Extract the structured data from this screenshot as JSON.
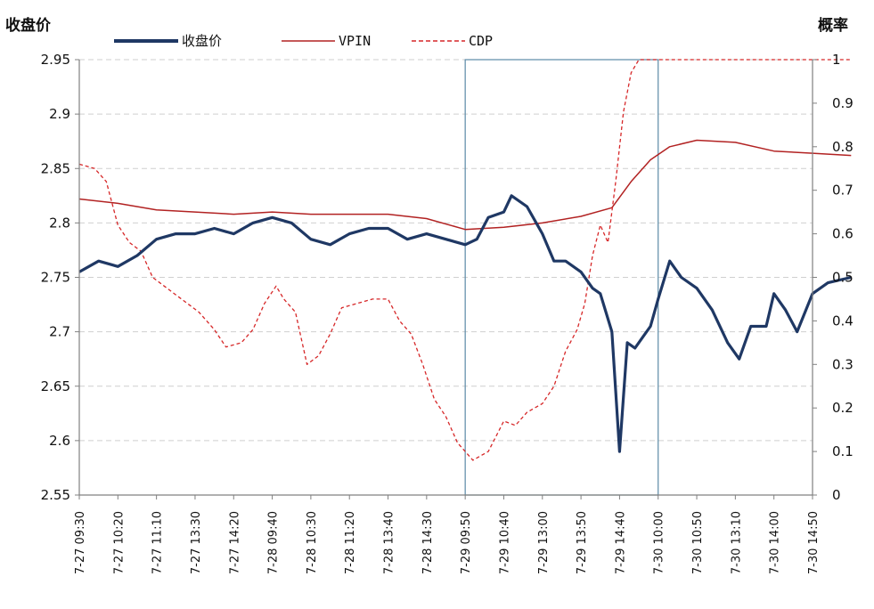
{
  "chart_data": {
    "type": "line",
    "ylabel_left": "收盘价",
    "ylabel_right": "概率",
    "ylim_left": [
      2.55,
      2.95
    ],
    "ylim_right": [
      0,
      1
    ],
    "yticks_left": [
      "2.55",
      "2.6",
      "2.65",
      "2.7",
      "2.75",
      "2.8",
      "2.85",
      "2.9",
      "2.95"
    ],
    "yticks_right": [
      "0",
      "0.1",
      "0.2",
      "0.3",
      "0.4",
      "0.5",
      "0.6",
      "0.7",
      "0.8",
      "0.9",
      "1"
    ],
    "x_tick_labels": [
      "7-27 09:30",
      "7-27 10:20",
      "7-27 11:10",
      "7-27 13:30",
      "7-27 14:20",
      "7-28 09:40",
      "7-28 10:30",
      "7-28 11:20",
      "7-28 13:40",
      "7-28 14:30",
      "7-29 09:50",
      "7-29 10:40",
      "7-29 13:00",
      "7-29 13:50",
      "7-29 14:40",
      "7-30 10:00",
      "7-30 10:50",
      "7-30 13:10",
      "7-30 14:00",
      "7-30 14:50"
    ],
    "grid": "horizontal dashed",
    "legend_position": "top",
    "highlight_region": {
      "from": "7-29 09:50",
      "to": "7-30 10:00"
    },
    "series": [
      {
        "name": "收盘价",
        "axis": "left",
        "color": "#1f3864",
        "style": "solid-thick",
        "points": [
          [
            0,
            2.755
          ],
          [
            0.5,
            2.765
          ],
          [
            1,
            2.76
          ],
          [
            1.5,
            2.77
          ],
          [
            2,
            2.785
          ],
          [
            2.5,
            2.79
          ],
          [
            3,
            2.79
          ],
          [
            3.5,
            2.795
          ],
          [
            4,
            2.79
          ],
          [
            4.5,
            2.8
          ],
          [
            5,
            2.805
          ],
          [
            5.5,
            2.8
          ],
          [
            6,
            2.785
          ],
          [
            6.5,
            2.78
          ],
          [
            7,
            2.79
          ],
          [
            7.5,
            2.795
          ],
          [
            8,
            2.795
          ],
          [
            8.5,
            2.785
          ],
          [
            9,
            2.79
          ],
          [
            9.5,
            2.785
          ],
          [
            10,
            2.78
          ],
          [
            10.3,
            2.785
          ],
          [
            10.6,
            2.805
          ],
          [
            11,
            2.81
          ],
          [
            11.2,
            2.825
          ],
          [
            11.6,
            2.815
          ],
          [
            12,
            2.79
          ],
          [
            12.3,
            2.765
          ],
          [
            12.6,
            2.765
          ],
          [
            13,
            2.755
          ],
          [
            13.3,
            2.74
          ],
          [
            13.5,
            2.735
          ],
          [
            13.8,
            2.7
          ],
          [
            14,
            2.59
          ],
          [
            14.2,
            2.69
          ],
          [
            14.4,
            2.685
          ],
          [
            14.6,
            2.695
          ],
          [
            14.8,
            2.705
          ],
          [
            15,
            2.73
          ],
          [
            15.3,
            2.765
          ],
          [
            15.6,
            2.75
          ],
          [
            16,
            2.74
          ],
          [
            16.4,
            2.72
          ],
          [
            16.8,
            2.69
          ],
          [
            17.1,
            2.675
          ],
          [
            17.4,
            2.705
          ],
          [
            17.8,
            2.705
          ],
          [
            18,
            2.735
          ],
          [
            18.3,
            2.72
          ],
          [
            18.6,
            2.7
          ],
          [
            19,
            2.735
          ],
          [
            19.4,
            2.745
          ],
          [
            20,
            2.75
          ]
        ]
      },
      {
        "name": "VPIN",
        "axis": "right",
        "color": "#b22222",
        "style": "solid-thin",
        "points": [
          [
            0,
            0.68
          ],
          [
            1,
            0.67
          ],
          [
            2,
            0.655
          ],
          [
            3,
            0.65
          ],
          [
            4,
            0.645
          ],
          [
            5,
            0.65
          ],
          [
            6,
            0.645
          ],
          [
            7,
            0.645
          ],
          [
            8,
            0.645
          ],
          [
            9,
            0.635
          ],
          [
            10,
            0.61
          ],
          [
            11,
            0.615
          ],
          [
            12,
            0.625
          ],
          [
            13,
            0.64
          ],
          [
            13.8,
            0.66
          ],
          [
            14.3,
            0.72
          ],
          [
            14.8,
            0.77
          ],
          [
            15.3,
            0.8
          ],
          [
            16,
            0.815
          ],
          [
            17,
            0.81
          ],
          [
            18,
            0.79
          ],
          [
            19,
            0.785
          ],
          [
            20,
            0.78
          ]
        ]
      },
      {
        "name": "CDP",
        "axis": "right",
        "color": "#d62728",
        "style": "dashed",
        "points": [
          [
            0,
            0.76
          ],
          [
            0.4,
            0.75
          ],
          [
            0.7,
            0.72
          ],
          [
            1,
            0.62
          ],
          [
            1.3,
            0.58
          ],
          [
            1.6,
            0.56
          ],
          [
            1.9,
            0.5
          ],
          [
            2.2,
            0.48
          ],
          [
            2.5,
            0.46
          ],
          [
            2.8,
            0.44
          ],
          [
            3.1,
            0.42
          ],
          [
            3.5,
            0.38
          ],
          [
            3.8,
            0.34
          ],
          [
            4.2,
            0.35
          ],
          [
            4.5,
            0.38
          ],
          [
            4.8,
            0.44
          ],
          [
            5.1,
            0.48
          ],
          [
            5.3,
            0.45
          ],
          [
            5.6,
            0.42
          ],
          [
            5.9,
            0.3
          ],
          [
            6.2,
            0.32
          ],
          [
            6.5,
            0.37
          ],
          [
            6.8,
            0.43
          ],
          [
            7.2,
            0.44
          ],
          [
            7.6,
            0.45
          ],
          [
            8,
            0.45
          ],
          [
            8.3,
            0.4
          ],
          [
            8.6,
            0.37
          ],
          [
            8.9,
            0.3
          ],
          [
            9.2,
            0.22
          ],
          [
            9.5,
            0.18
          ],
          [
            9.8,
            0.12
          ],
          [
            10.2,
            0.08
          ],
          [
            10.6,
            0.1
          ],
          [
            11,
            0.17
          ],
          [
            11.3,
            0.16
          ],
          [
            11.6,
            0.19
          ],
          [
            12,
            0.21
          ],
          [
            12.3,
            0.25
          ],
          [
            12.6,
            0.33
          ],
          [
            12.9,
            0.38
          ],
          [
            13.1,
            0.44
          ],
          [
            13.3,
            0.55
          ],
          [
            13.5,
            0.62
          ],
          [
            13.7,
            0.58
          ],
          [
            13.9,
            0.72
          ],
          [
            14.1,
            0.88
          ],
          [
            14.3,
            0.97
          ],
          [
            14.5,
            1.0
          ],
          [
            14.8,
            1.0
          ],
          [
            15,
            1.0
          ],
          [
            16,
            1.0
          ],
          [
            17,
            1.0
          ],
          [
            18,
            1.0
          ],
          [
            19,
            1.0
          ],
          [
            20,
            1.0
          ]
        ]
      }
    ]
  }
}
